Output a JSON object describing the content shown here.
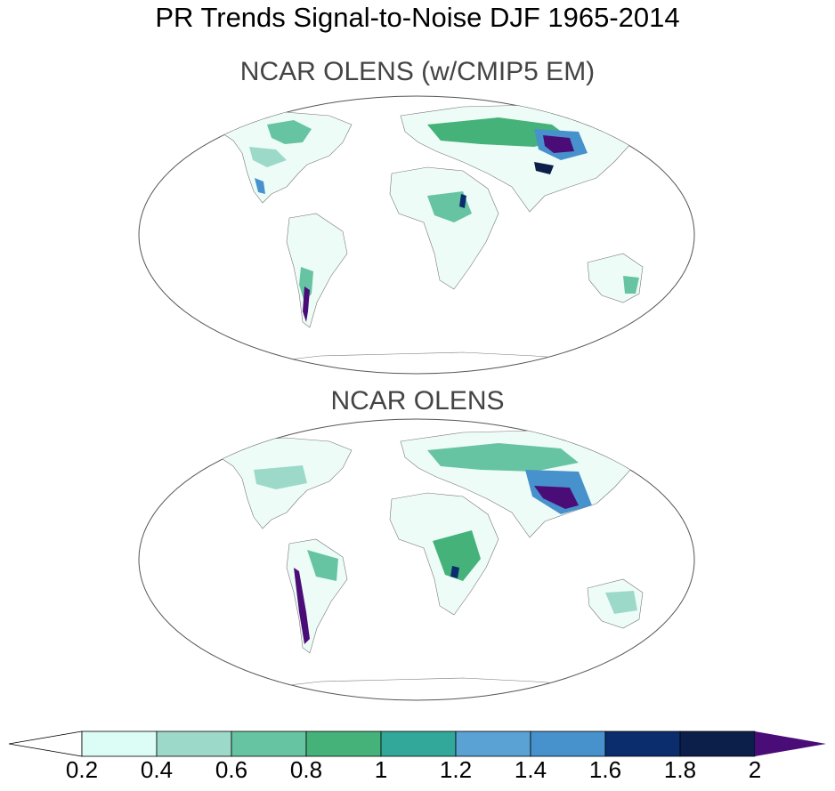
{
  "figure": {
    "title": "PR Trends Signal-to-Noise DJF 1965-2014",
    "panels": [
      {
        "title": "NCAR OLENS (w/CMIP5 EM)"
      },
      {
        "title": "NCAR OLENS"
      }
    ]
  },
  "colorbar": {
    "levels": [
      "0.2",
      "0.4",
      "0.6",
      "0.8",
      "1",
      "1.2",
      "1.4",
      "1.6",
      "1.8",
      "2"
    ],
    "colors": {
      "below": "#ffffff",
      "bins": [
        "#dcfdf6",
        "#9dd9c9",
        "#67c4a2",
        "#45b27a",
        "#31a89a",
        "#5aa2d4",
        "#4792cc",
        "#0b2d6e",
        "#0b1f4a"
      ],
      "above": "#4a0d78"
    }
  },
  "palette": {
    "land_outline": "#555555",
    "map_border": "#555555"
  }
}
